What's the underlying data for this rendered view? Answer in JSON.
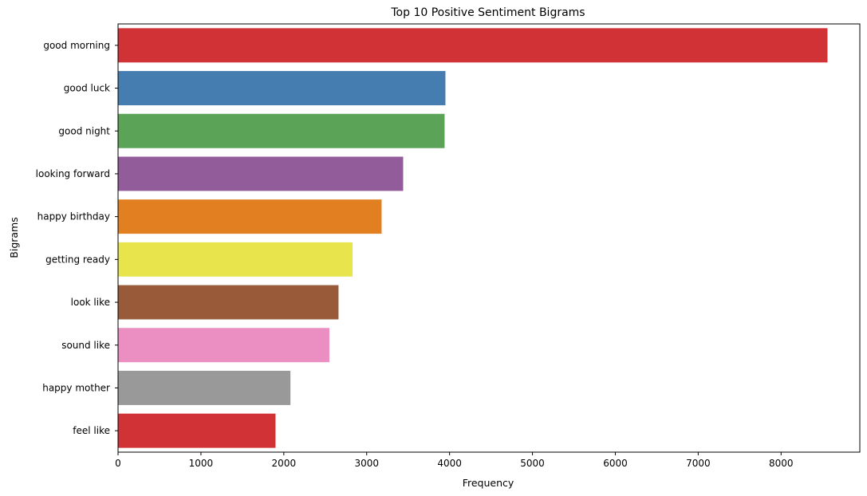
{
  "chart_data": {
    "type": "bar",
    "orientation": "horizontal",
    "title": "Top 10 Positive Sentiment Bigrams",
    "xlabel": "Frequency",
    "ylabel": "Bigrams",
    "xlim": [
      0,
      8950
    ],
    "xticks": [
      0,
      1000,
      2000,
      3000,
      4000,
      5000,
      6000,
      7000,
      8000
    ],
    "grid": false,
    "categories": [
      "good morning",
      "good luck",
      "good night",
      "looking forward",
      "happy birthday",
      "getting ready",
      "look like",
      "sound like",
      "happy mother",
      "feel like"
    ],
    "values": [
      8560,
      3950,
      3940,
      3440,
      3180,
      2830,
      2660,
      2550,
      2080,
      1900
    ],
    "colors": [
      "#d03236",
      "#467db0",
      "#5ba457",
      "#925b9a",
      "#e17f21",
      "#e8e54c",
      "#985a38",
      "#eb8fc2",
      "#999999",
      "#d03236"
    ]
  }
}
